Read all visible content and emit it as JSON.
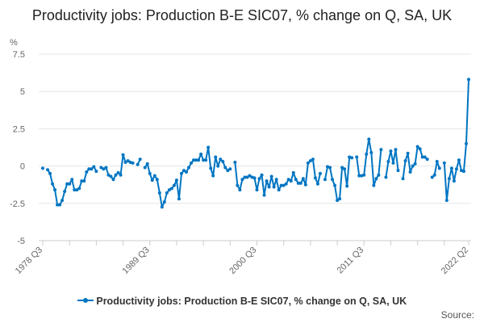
{
  "chart_data": {
    "type": "line",
    "title": "Productivity jobs: Production B-E SIC07, % change on Q, SA, UK",
    "ylabel": "%",
    "xlabel": "",
    "ylim": [
      -5,
      7.5
    ],
    "yticks": [
      7.5,
      5,
      2.5,
      0,
      -2.5,
      -5
    ],
    "ytick_labels": [
      "7.5",
      "5",
      "2.5",
      "0",
      "-2.5",
      "-5"
    ],
    "x_start": "1978 Q3",
    "x_end": "2022 Q2",
    "xtick_labels": [
      "1978 Q3",
      "1989 Q3",
      "2000 Q3",
      "2011 Q3",
      "2022 Q2"
    ],
    "xtick_indices": [
      0,
      44,
      88,
      132,
      175
    ],
    "grid": true,
    "legend_position": "bottom",
    "color": "#0075c2",
    "series": [
      {
        "name": "Productivity jobs: Production B-E SIC07, % change on Q, SA, UK",
        "values": [
          -0.15,
          null,
          -0.25,
          -0.5,
          -1.2,
          -1.6,
          -2.6,
          -2.6,
          -2.3,
          -1.7,
          -1.2,
          -1.2,
          -0.9,
          -1.6,
          -1.6,
          -1.5,
          -1.0,
          -1.0,
          -0.4,
          -0.2,
          -0.2,
          -0.05,
          -0.35,
          null,
          -0.1,
          -0.2,
          -0.1,
          -0.6,
          -0.7,
          -0.9,
          -0.6,
          -0.45,
          -0.6,
          0.75,
          0.25,
          0.35,
          0.25,
          0.2,
          null,
          0.1,
          0.45,
          null,
          -0.1,
          0.15,
          -0.5,
          -0.95,
          -0.65,
          -0.9,
          -1.8,
          -2.75,
          -2.4,
          -1.8,
          -1.6,
          -1.5,
          -1.3,
          -0.95,
          -2.2,
          -0.5,
          -0.3,
          -0.4,
          -0.1,
          0.2,
          0.4,
          0.4,
          0.4,
          0.8,
          0.4,
          0.4,
          1.25,
          -0.15,
          -0.65,
          0.6,
          0.0,
          0.45,
          0.3,
          -0.1,
          -0.3,
          -0.2,
          null,
          0.25,
          -1.3,
          -1.6,
          -0.9,
          -0.75,
          -0.75,
          -0.65,
          -0.75,
          -0.8,
          -1.6,
          -0.85,
          -0.6,
          -1.95,
          -1.0,
          -1.4,
          -0.7,
          -1.4,
          -0.9,
          -1.6,
          -1.3,
          -1.3,
          -1.2,
          -0.9,
          -1.0,
          -0.45,
          -0.9,
          -1.15,
          -1.15,
          -0.85,
          -1.25,
          0.2,
          0.35,
          0.45,
          -0.8,
          -1.2,
          -0.5,
          null,
          -0.9,
          -0.05,
          -0.1,
          -0.9,
          -1.3,
          -2.3,
          -2.2,
          -0.1,
          -0.2,
          -1.35,
          0.6,
          0.55,
          null,
          0.6,
          -0.65,
          -0.65,
          -0.6,
          0.8,
          1.8,
          0.9,
          -1.3,
          -0.85,
          -0.6,
          1.1,
          null,
          -0.75,
          0.3,
          1.0,
          0.2,
          1.1,
          -0.3,
          null,
          -0.85,
          0.35,
          0.85,
          -0.4,
          0.0,
          0.15,
          1.3,
          1.15,
          0.6,
          0.6,
          0.45,
          null,
          -0.75,
          -0.6,
          0.3,
          -0.15,
          null,
          0.2,
          -2.3,
          -0.85,
          -0.15,
          -1.0,
          -0.2,
          0.4,
          -0.3,
          -0.35,
          1.5,
          5.8
        ]
      }
    ],
    "source_label": "Source:"
  }
}
